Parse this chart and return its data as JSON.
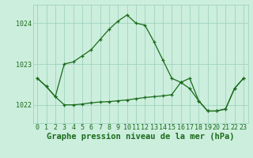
{
  "title": "Graphe pression niveau de la mer (hPa)",
  "x_values": [
    0,
    1,
    2,
    3,
    4,
    5,
    6,
    7,
    8,
    9,
    10,
    11,
    12,
    13,
    14,
    15,
    16,
    17,
    18,
    19,
    20,
    21,
    22,
    23
  ],
  "y_values1": [
    1022.65,
    1022.45,
    1022.2,
    1023.0,
    1023.05,
    1023.2,
    1023.35,
    1023.6,
    1023.85,
    1024.05,
    1024.2,
    1024.0,
    1023.95,
    1023.55,
    1023.1,
    1022.65,
    1022.55,
    1022.4,
    1022.1,
    1021.85,
    1021.85,
    1021.9,
    1022.4,
    1022.65
  ],
  "y_values2": [
    1022.65,
    1022.45,
    1022.2,
    1022.0,
    1022.0,
    1022.02,
    1022.05,
    1022.07,
    1022.08,
    1022.1,
    1022.12,
    1022.15,
    1022.18,
    1022.2,
    1022.22,
    1022.25,
    1022.55,
    1022.65,
    1022.1,
    1021.85,
    1021.85,
    1021.9,
    1022.4,
    1022.65
  ],
  "ylim_min": 1021.55,
  "ylim_max": 1024.45,
  "yticks": [
    1022,
    1023,
    1024
  ],
  "xticks": [
    0,
    1,
    2,
    3,
    4,
    5,
    6,
    7,
    8,
    9,
    10,
    11,
    12,
    13,
    14,
    15,
    16,
    17,
    18,
    19,
    20,
    21,
    22,
    23
  ],
  "line_color": "#1a6b1a",
  "bg_color": "#cceedd",
  "grid_color": "#99ccbb",
  "text_color": "#1a6b1a",
  "title_fontsize": 7.5,
  "tick_fontsize": 6.0
}
